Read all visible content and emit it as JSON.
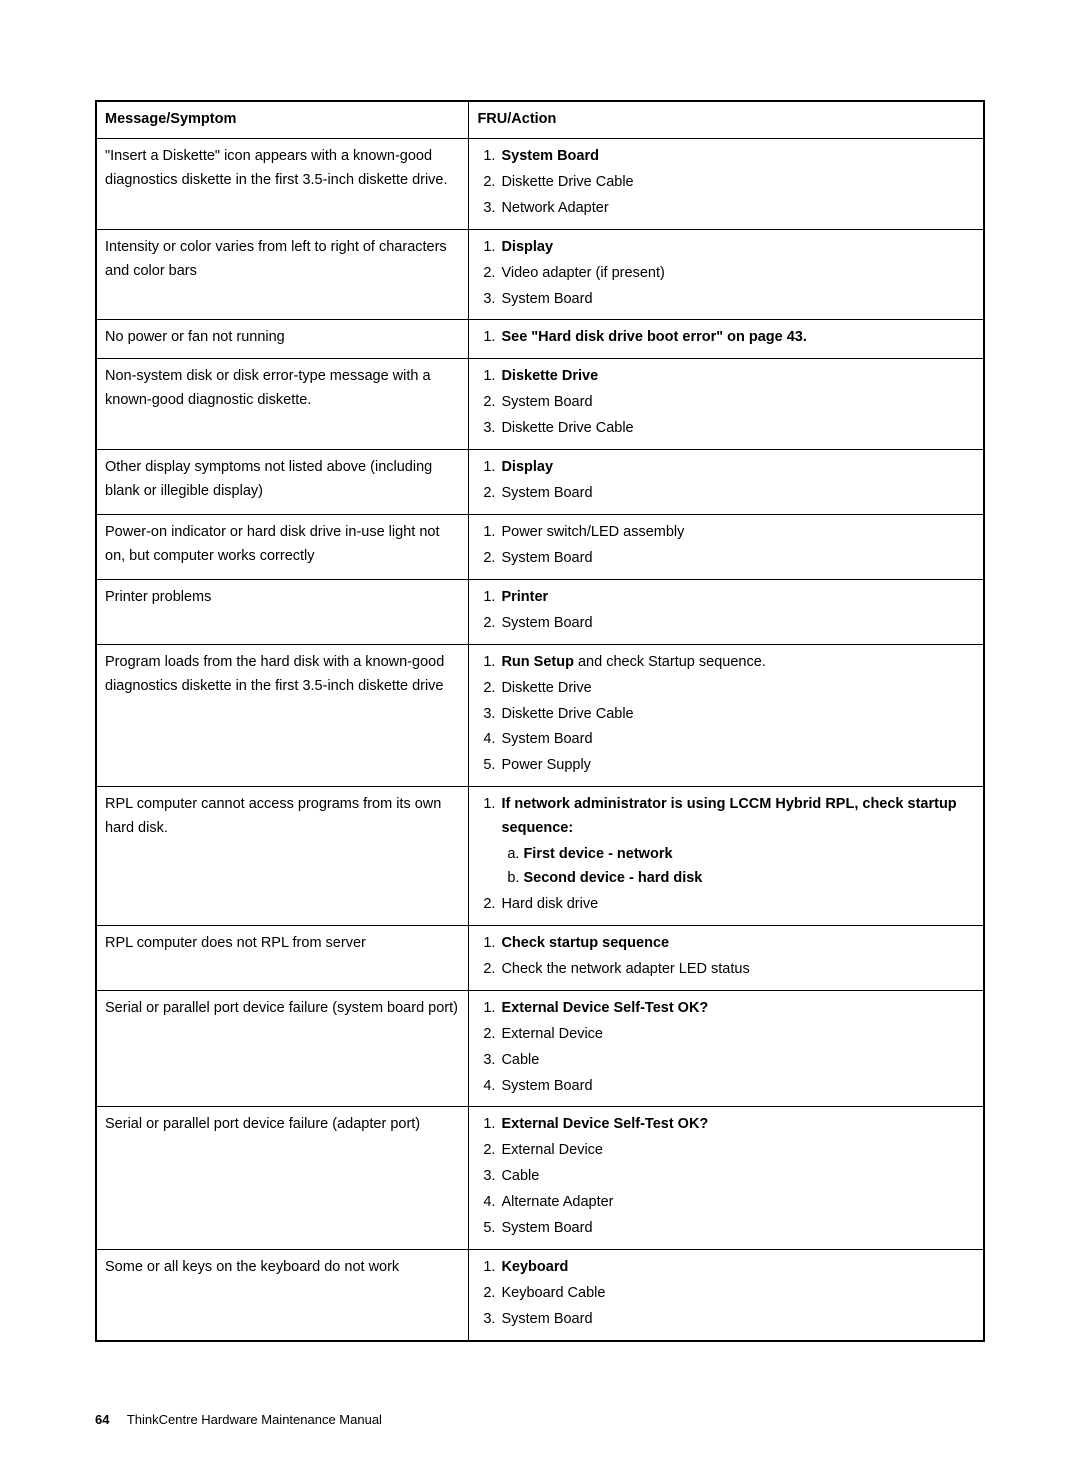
{
  "columns": [
    "Message/Symptom",
    "FRU/Action"
  ],
  "rows": [
    {
      "symptom": "\"Insert a Diskette\" icon appears with a known-good diagnostics diskette in the first 3.5-inch diskette drive.",
      "actions": [
        {
          "text": "System Board",
          "bold": true
        },
        {
          "text": "Diskette Drive Cable"
        },
        {
          "text": "Network Adapter"
        }
      ]
    },
    {
      "symptom": "Intensity or color varies from left to right of characters and color bars",
      "actions": [
        {
          "text": "Display",
          "bold": true
        },
        {
          "text": "Video adapter (if present)"
        },
        {
          "text": "System Board"
        }
      ]
    },
    {
      "symptom": "No power or fan not running",
      "actions": [
        {
          "text": "See \"Hard disk drive boot error\" on page 43.",
          "bold": true
        }
      ]
    },
    {
      "symptom": "Non-system disk or disk error-type message with a known-good diagnostic diskette.",
      "actions": [
        {
          "text": "Diskette Drive",
          "bold": true
        },
        {
          "text": "System Board"
        },
        {
          "text": "Diskette Drive Cable"
        }
      ]
    },
    {
      "symptom": "Other display symptoms not listed above (including blank or illegible display)",
      "actions": [
        {
          "text": "Display",
          "bold": true
        },
        {
          "text": "System Board"
        }
      ]
    },
    {
      "symptom": "Power-on indicator or hard disk drive in-use light not on, but computer works correctly",
      "actions": [
        {
          "text": "Power switch/LED assembly"
        },
        {
          "text": "System Board"
        }
      ]
    },
    {
      "symptom": "Printer problems",
      "actions": [
        {
          "text": "Printer",
          "bold": true
        },
        {
          "text": "System Board"
        }
      ]
    },
    {
      "symptom": "Program loads from the hard disk with a known-good diagnostics diskette in the first 3.5-inch diskette drive",
      "actions": [
        {
          "prefix": "Run Setup",
          "prefix_bold": true,
          "suffix": " and check Startup sequence."
        },
        {
          "text": "Diskette Drive"
        },
        {
          "text": "Diskette Drive Cable"
        },
        {
          "text": "System Board"
        },
        {
          "text": "Power Supply"
        }
      ]
    },
    {
      "symptom": "RPL computer cannot access programs from its own hard disk.",
      "actions": [
        {
          "text": "If network administrator is using LCCM Hybrid RPL, check startup sequence:",
          "bold": true,
          "sub": [
            {
              "text": "First device - network",
              "bold": true
            },
            {
              "text": "Second device - hard disk",
              "bold": true
            }
          ]
        },
        {
          "text": "Hard disk drive"
        }
      ]
    },
    {
      "symptom": "RPL computer does not RPL from server",
      "actions": [
        {
          "text": "Check startup sequence",
          "bold": true
        },
        {
          "text": "Check the network adapter LED status"
        }
      ]
    },
    {
      "symptom": "Serial or parallel port device failure (system board port)",
      "actions": [
        {
          "text": "External Device Self-Test OK?",
          "bold": true
        },
        {
          "text": "External Device"
        },
        {
          "text": "Cable"
        },
        {
          "text": "System Board"
        }
      ]
    },
    {
      "symptom": "Serial or parallel port device failure (adapter port)",
      "actions": [
        {
          "text": "External Device Self-Test OK?",
          "bold": true
        },
        {
          "text": "External Device"
        },
        {
          "text": "Cable"
        },
        {
          "text": "Alternate Adapter"
        },
        {
          "text": "System Board"
        }
      ]
    },
    {
      "symptom": "Some or all keys on the keyboard do not work",
      "actions": [
        {
          "text": "Keyboard",
          "bold": true
        },
        {
          "text": "Keyboard Cable"
        },
        {
          "text": "System Board"
        }
      ]
    }
  ],
  "footer": {
    "page_number": "64",
    "title": "ThinkCentre Hardware Maintenance Manual"
  },
  "style": {
    "font_family": "Arial, Helvetica, sans-serif",
    "font_size_pt": 11,
    "text_color": "#000000",
    "background_color": "#ffffff",
    "border_color": "#000000",
    "col_widths_pct": [
      42,
      58
    ]
  }
}
